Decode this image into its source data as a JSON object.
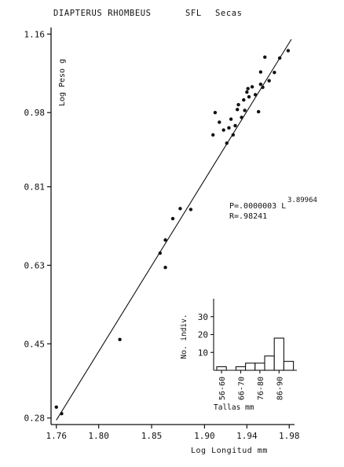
{
  "chart_data": [
    {
      "type": "scatter",
      "header": {
        "species": "DIAPTERUS RHOMBEUS",
        "sample": "SFL",
        "season": "Secas"
      },
      "xlabel": "Log Longitud mm",
      "ylabel": "Log Peso g",
      "xlim": [
        1.755,
        1.985
      ],
      "ylim": [
        0.265,
        1.175
      ],
      "x_ticks": [
        "1.76",
        "1.80",
        "1.85",
        "1.90",
        "1.94",
        "1.98"
      ],
      "y_ticks": [
        "0.28",
        "0.45",
        "0.63",
        "0.81",
        "0.98",
        "1.16"
      ],
      "x": [
        1.76,
        1.765,
        1.82,
        1.858,
        1.863,
        1.863,
        1.87,
        1.877,
        1.887,
        1.908,
        1.91,
        1.914,
        1.918,
        1.921,
        1.923,
        1.925,
        1.927,
        1.929,
        1.931,
        1.932,
        1.935,
        1.937,
        1.938,
        1.94,
        1.941,
        1.942,
        1.945,
        1.948,
        1.951,
        1.953,
        1.953,
        1.955,
        1.957,
        1.961,
        1.966,
        1.971,
        1.979
      ],
      "y": [
        0.305,
        0.29,
        0.46,
        0.658,
        0.688,
        0.625,
        0.737,
        0.76,
        0.758,
        0.929,
        0.98,
        0.958,
        0.94,
        0.91,
        0.945,
        0.965,
        0.929,
        0.95,
        0.987,
        0.998,
        0.969,
        1.009,
        0.985,
        1.027,
        1.035,
        1.016,
        1.039,
        1.021,
        0.982,
        1.045,
        1.073,
        1.038,
        1.107,
        1.053,
        1.072,
        1.105,
        1.122
      ],
      "fit_line": {
        "x": [
          1.76,
          1.982
        ],
        "y": [
          0.275,
          1.148
        ]
      },
      "equation": {
        "main": "P=.0000003 L",
        "exponent": "3.89964",
        "r": "R=.98241"
      }
    },
    {
      "type": "bar",
      "ylabel": "No. indiv.",
      "xlabel": "Tallas mm",
      "ylim": [
        0,
        40
      ],
      "y_ticks": [
        "10",
        "20",
        "30"
      ],
      "category_labels": [
        "56-60",
        "66-70",
        "76-80",
        "86-90"
      ],
      "values": [
        2,
        0,
        2,
        4,
        4,
        8,
        18,
        5
      ]
    }
  ]
}
